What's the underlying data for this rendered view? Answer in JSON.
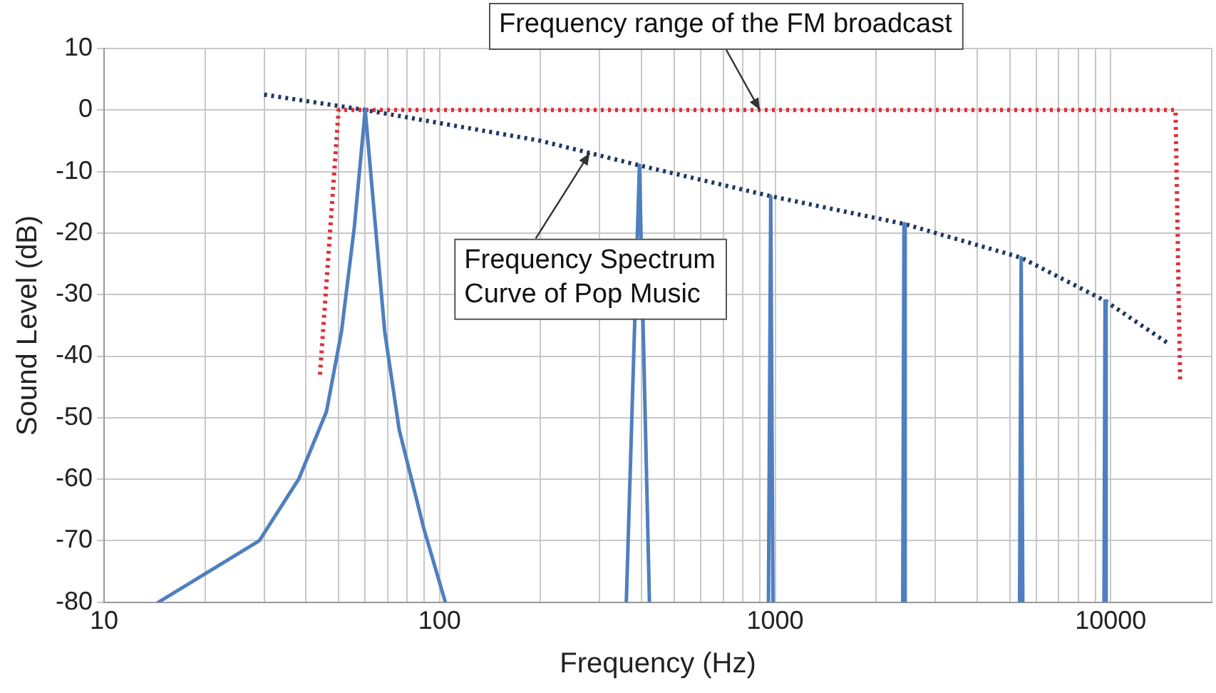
{
  "chart_data": {
    "type": "line",
    "xlabel": "Frequency (Hz)",
    "ylabel": "Sound Level (dB)",
    "xlim": [
      10,
      20000
    ],
    "ylim": [
      -80,
      10
    ],
    "xticks": [
      10,
      {
        "value": 20,
        "label": null
      },
      {
        "value": 30,
        "label": null
      },
      {
        "value": 40,
        "label": null
      },
      {
        "value": 50,
        "label": null
      },
      {
        "value": 60,
        "label": null
      },
      {
        "value": 70,
        "label": null
      },
      {
        "value": 80,
        "label": null
      },
      {
        "value": 90,
        "label": null
      },
      100,
      {
        "value": 200,
        "label": null
      },
      {
        "value": 300,
        "label": null
      },
      {
        "value": 400,
        "label": null
      },
      {
        "value": 500,
        "label": null
      },
      {
        "value": 600,
        "label": null
      },
      {
        "value": 700,
        "label": null
      },
      {
        "value": 800,
        "label": null
      },
      {
        "value": 900,
        "label": null
      },
      1000,
      {
        "value": 2000,
        "label": null
      },
      {
        "value": 3000,
        "label": null
      },
      {
        "value": 4000,
        "label": null
      },
      {
        "value": 5000,
        "label": null
      },
      {
        "value": 6000,
        "label": null
      },
      {
        "value": 7000,
        "label": null
      },
      {
        "value": 8000,
        "label": null
      },
      {
        "value": 9000,
        "label": null
      },
      10000,
      {
        "value": 20000,
        "label": null
      }
    ],
    "yticks": [
      -80,
      -70,
      -60,
      -50,
      -40,
      -30,
      -20,
      -10,
      0,
      10
    ],
    "log": "x",
    "grid": true,
    "legend": false,
    "marker": "none",
    "series": [
      {
        "color": "#4f7fbf",
        "line_style": "solid",
        "x": [
          14.5,
          29,
          38,
          46,
          51,
          55.7,
          60,
          64.4,
          68.6,
          75.8,
          89.7,
          104,
          200,
          360,
          394,
          422,
          600,
          955,
          970,
          985,
          1500,
          2400,
          2420,
          2440,
          4000,
          5350,
          5410,
          5470,
          8000,
          9550,
          9620,
          9690
        ],
        "values": [
          -80,
          -70,
          -60,
          -49,
          -36,
          -19,
          0,
          -19,
          -36,
          -52,
          -68,
          -80,
          null,
          -80,
          -9,
          -80,
          null,
          -80,
          -14,
          -80,
          null,
          -80,
          -18.5,
          -80,
          null,
          -80,
          -24,
          -80,
          null,
          -80,
          -31,
          -80
        ]
      },
      {
        "color": "#1f3864",
        "line_style": "dotted",
        "x": [
          30,
          60,
          200,
          394,
          970,
          2420,
          5410,
          9620,
          14900
        ],
        "values": [
          2.5,
          0,
          -5,
          -9,
          -14,
          -18.5,
          -24,
          -31,
          -38
        ]
      },
      {
        "color": "#e0303a",
        "line_style": "dotted",
        "x": [
          44,
          50,
          15600,
          16100
        ],
        "values": [
          -43,
          0,
          0,
          -44
        ]
      }
    ],
    "annotations": [
      {
        "text": "Frequency range of the FM broadcast",
        "x": 900,
        "y": 0
      },
      {
        "text": "Frequency Spectrum\nCurve of Pop Music",
        "x": 280,
        "y": -7
      }
    ]
  }
}
